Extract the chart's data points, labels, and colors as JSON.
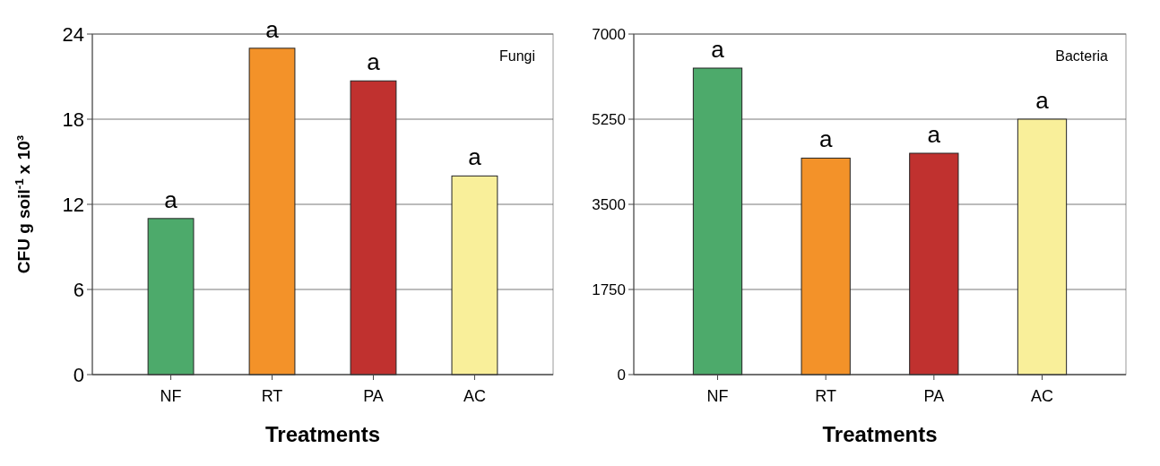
{
  "chart_data": [
    {
      "type": "bar",
      "ylabel": "CFU g soil$^{-1}$ x 10³",
      "xlabel": "Treatments",
      "categories": [
        "NF",
        "RT",
        "PA",
        "AC"
      ],
      "values": [
        11,
        23,
        20.7,
        14
      ],
      "colors": [
        "#4daa6b",
        "#f39229",
        "#c0312f",
        "#f9ef9a"
      ],
      "ylim": [
        0,
        24
      ],
      "yticks": [
        0,
        6,
        12,
        18,
        24
      ],
      "grid": "y",
      "annotations": [
        "Fungi",
        {
          "text": "a",
          "x": "NF",
          "y": 11
        },
        {
          "text": "a",
          "x": "RT",
          "y": 23
        },
        {
          "text": "a",
          "x": "PA",
          "y": 20.7
        },
        {
          "text": "a",
          "x": "AC",
          "y": 14
        }
      ]
    },
    {
      "type": "bar",
      "xlabel": "Treatments",
      "categories": [
        "NF",
        "RT",
        "PA",
        "AC"
      ],
      "values": [
        6300,
        4450,
        4550,
        5250
      ],
      "colors": [
        "#4daa6b",
        "#f39229",
        "#c0312f",
        "#f9ef9a"
      ],
      "ylim": [
        0,
        7000
      ],
      "yticks": [
        0,
        1750,
        3500,
        5250,
        7000
      ],
      "grid": "y",
      "annotations": [
        "Bacteria",
        {
          "text": "a",
          "x": "NF",
          "y": 6300
        },
        {
          "text": "a",
          "x": "RT",
          "y": 4450
        },
        {
          "text": "a",
          "x": "PA",
          "y": 4550
        },
        {
          "text": "a",
          "x": "AC",
          "y": 5250
        }
      ]
    }
  ]
}
